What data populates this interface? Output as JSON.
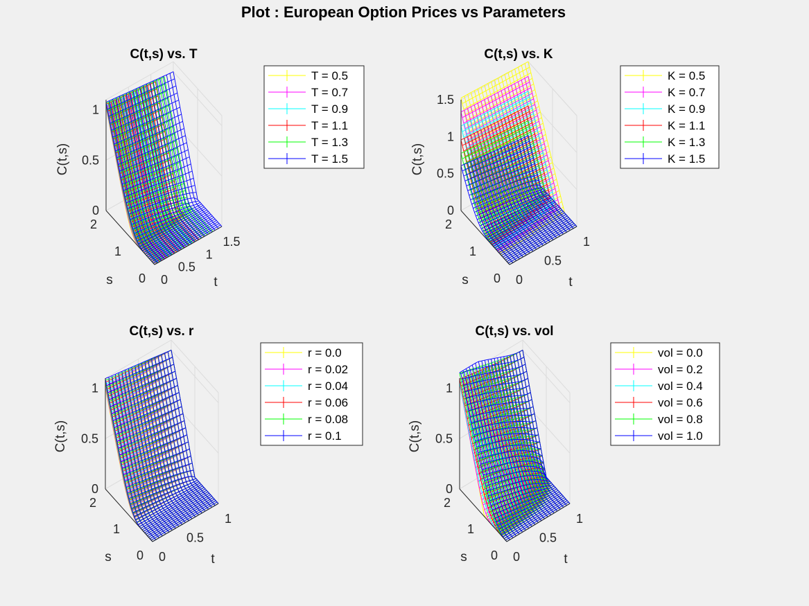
{
  "figure": {
    "title": "Plot : European Option Prices vs Parameters"
  },
  "chart_data": [
    {
      "type": "surface",
      "title": "C(t,s) vs. T",
      "xlabel": "t",
      "ylabel": "s",
      "zlabel": "C(t,s)",
      "x_ticks": [
        "0",
        "0.5",
        "1",
        "1.5"
      ],
      "y_ticks": [
        "0",
        "1",
        "2"
      ],
      "z_ticks": [
        "0",
        "0.5",
        "1"
      ],
      "xlim": [
        0,
        1.5
      ],
      "ylim": [
        0,
        2
      ],
      "zlim": [
        0,
        1.1
      ],
      "grid": true,
      "legend": "right",
      "series": [
        {
          "name": "T = 0.5",
          "color": "#ffff00",
          "tmax": 0.5
        },
        {
          "name": "T = 0.7",
          "color": "#ff00ff",
          "tmax": 0.7
        },
        {
          "name": "T = 0.9",
          "color": "#00ffff",
          "tmax": 0.9
        },
        {
          "name": "T = 1.1",
          "color": "#ff0000",
          "tmax": 1.1
        },
        {
          "name": "T = 1.3",
          "color": "#00ff00",
          "tmax": 1.3
        },
        {
          "name": "T = 1.5",
          "color": "#0000ff",
          "tmax": 1.5
        }
      ]
    },
    {
      "type": "surface",
      "title": "C(t,s) vs. K",
      "xlabel": "t",
      "ylabel": "s",
      "zlabel": "C(t,s)",
      "x_ticks": [
        "0",
        "0.5",
        "1"
      ],
      "y_ticks": [
        "0",
        "1",
        "2"
      ],
      "z_ticks": [
        "0",
        "0.5",
        "1",
        "1.5"
      ],
      "xlim": [
        0,
        1
      ],
      "ylim": [
        0,
        2
      ],
      "zlim": [
        0,
        1.5
      ],
      "grid": true,
      "legend": "right",
      "series": [
        {
          "name": "K = 0.5",
          "color": "#ffff00",
          "K": 0.5
        },
        {
          "name": "K = 0.7",
          "color": "#ff00ff",
          "K": 0.7
        },
        {
          "name": "K = 0.9",
          "color": "#00ffff",
          "K": 0.9
        },
        {
          "name": "K = 1.1",
          "color": "#ff0000",
          "K": 1.1
        },
        {
          "name": "K = 1.3",
          "color": "#00ff00",
          "K": 1.3
        },
        {
          "name": "K = 1.5",
          "color": "#0000ff",
          "K": 1.5
        }
      ]
    },
    {
      "type": "surface",
      "title": "C(t,s) vs. r",
      "xlabel": "t",
      "ylabel": "s",
      "zlabel": "C(t,s)",
      "x_ticks": [
        "0",
        "0.5",
        "1"
      ],
      "y_ticks": [
        "0",
        "1",
        "2"
      ],
      "z_ticks": [
        "0",
        "0.5",
        "1"
      ],
      "xlim": [
        0,
        1
      ],
      "ylim": [
        0,
        2
      ],
      "zlim": [
        0,
        1.1
      ],
      "grid": true,
      "legend": "right",
      "series": [
        {
          "name": "r = 0.0",
          "color": "#ffff00",
          "r": 0.0
        },
        {
          "name": "r = 0.02",
          "color": "#ff00ff",
          "r": 0.02
        },
        {
          "name": "r = 0.04",
          "color": "#00ffff",
          "r": 0.04
        },
        {
          "name": "r = 0.06",
          "color": "#ff0000",
          "r": 0.06
        },
        {
          "name": "r = 0.08",
          "color": "#00ff00",
          "r": 0.08
        },
        {
          "name": "r = 0.1",
          "color": "#0000ff",
          "r": 0.1
        }
      ]
    },
    {
      "type": "surface",
      "title": "C(t,s) vs. vol",
      "xlabel": "t",
      "ylabel": "s",
      "zlabel": "C(t,s)",
      "x_ticks": [
        "0",
        "0.5",
        "1"
      ],
      "y_ticks": [
        "0",
        "1",
        "2"
      ],
      "z_ticks": [
        "0",
        "0.5",
        "1"
      ],
      "xlim": [
        0,
        1
      ],
      "ylim": [
        0,
        2
      ],
      "zlim": [
        0,
        1.1
      ],
      "grid": true,
      "legend": "right",
      "series": [
        {
          "name": "vol = 0.0",
          "color": "#ffff00",
          "vol": 0.0
        },
        {
          "name": "vol = 0.2",
          "color": "#ff00ff",
          "vol": 0.2
        },
        {
          "name": "vol = 0.4",
          "color": "#00ffff",
          "vol": 0.4
        },
        {
          "name": "vol = 0.6",
          "color": "#ff0000",
          "vol": 0.6
        },
        {
          "name": "vol = 0.8",
          "color": "#00ff00",
          "vol": 0.8
        },
        {
          "name": "vol = 1.0",
          "color": "#0000ff",
          "vol": 1.0
        }
      ]
    }
  ]
}
